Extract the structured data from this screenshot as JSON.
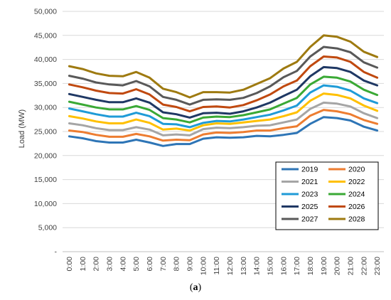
{
  "caption": {
    "open": "(",
    "letter": "a",
    "close": ")"
  },
  "chart_data": {
    "type": "line",
    "title": "",
    "ylabel": "Load (MW)",
    "xlabel": "",
    "ylim": [
      0,
      50000
    ],
    "yticks": [
      0,
      5000,
      10000,
      15000,
      20000,
      25000,
      30000,
      35000,
      40000,
      45000,
      50000
    ],
    "ytick_labels": [
      "-",
      "5,000",
      "10,000",
      "15,000",
      "20,000",
      "25,000",
      "30,000",
      "35,000",
      "40,000",
      "45,000",
      "50,000"
    ],
    "grid": true,
    "legend_position": "bottom-right",
    "categories": [
      "0:00",
      "1:00",
      "2:00",
      "3:00",
      "4:00",
      "5:00",
      "6:00",
      "7:00",
      "8:00",
      "9:00",
      "10:00",
      "11:00",
      "12:00",
      "13:00",
      "14:00",
      "15:00",
      "16:00",
      "17:00",
      "18:00",
      "19:00",
      "20:00",
      "21:00",
      "22:00",
      "23:00"
    ],
    "series": [
      {
        "name": "2019",
        "color": "#2E75B6",
        "values": [
          24000,
          23600,
          23000,
          22700,
          22700,
          23300,
          22700,
          22000,
          22400,
          22400,
          23500,
          23800,
          23700,
          23800,
          24100,
          24000,
          24300,
          24700,
          26600,
          28000,
          27800,
          27300,
          26000,
          25200
        ]
      },
      {
        "name": "2020",
        "color": "#ED7D31",
        "values": [
          25200,
          24900,
          24300,
          23900,
          23900,
          24500,
          24000,
          23100,
          23300,
          23200,
          24400,
          24800,
          24700,
          24900,
          25200,
          25200,
          25700,
          26100,
          28300,
          29500,
          29200,
          28600,
          27400,
          26600
        ]
      },
      {
        "name": "2021",
        "color": "#A5A5A5",
        "values": [
          26700,
          26300,
          25700,
          25300,
          25300,
          25900,
          25400,
          24200,
          24400,
          24200,
          25500,
          25800,
          25700,
          25900,
          26200,
          26300,
          26900,
          27500,
          29700,
          31000,
          30800,
          30200,
          28800,
          27800
        ]
      },
      {
        "name": "2022",
        "color": "#FFC000",
        "values": [
          28200,
          27700,
          27100,
          26700,
          26700,
          27500,
          26800,
          25400,
          25600,
          25200,
          26300,
          26700,
          26600,
          26900,
          27200,
          27500,
          28200,
          29000,
          31400,
          32900,
          32600,
          31900,
          30400,
          29300
        ]
      },
      {
        "name": "2023",
        "color": "#1F9BD7",
        "values": [
          29800,
          29200,
          28600,
          28100,
          28100,
          28900,
          28200,
          26600,
          26500,
          25900,
          26800,
          27200,
          27100,
          27500,
          28000,
          28500,
          29400,
          30400,
          33100,
          34600,
          34300,
          33500,
          31900,
          30900
        ]
      },
      {
        "name": "2024",
        "color": "#3AA935",
        "values": [
          31200,
          30600,
          30000,
          29600,
          29600,
          30300,
          29500,
          27800,
          27500,
          26900,
          27900,
          28100,
          28000,
          28400,
          29000,
          29600,
          30800,
          32000,
          34800,
          36400,
          36200,
          35400,
          33700,
          32600
        ]
      },
      {
        "name": "2025",
        "color": "#1F3864",
        "values": [
          32800,
          32200,
          31600,
          31100,
          31100,
          31900,
          31000,
          29000,
          28600,
          27900,
          28800,
          28900,
          28700,
          29200,
          30000,
          31000,
          32400,
          33700,
          36500,
          38400,
          38200,
          37400,
          35600,
          34600
        ]
      },
      {
        "name": "2026",
        "color": "#C0490F",
        "values": [
          34800,
          34200,
          33500,
          33000,
          32900,
          33800,
          32700,
          30600,
          30100,
          29200,
          30100,
          30200,
          30000,
          30500,
          31500,
          32700,
          34400,
          35600,
          38600,
          40600,
          40400,
          39500,
          37400,
          36200
        ]
      },
      {
        "name": "2027",
        "color": "#595959",
        "values": [
          36600,
          36000,
          35200,
          34800,
          34600,
          35500,
          34400,
          32200,
          31600,
          30600,
          31600,
          31700,
          31600,
          32000,
          33000,
          34400,
          36300,
          37600,
          40600,
          42600,
          42300,
          41500,
          39400,
          38300
        ]
      },
      {
        "name": "2028",
        "color": "#9E7A10",
        "values": [
          38600,
          38000,
          37100,
          36600,
          36500,
          37400,
          36200,
          33900,
          33200,
          32100,
          33200,
          33200,
          33100,
          33700,
          34900,
          36100,
          38100,
          39500,
          42600,
          45000,
          44700,
          43700,
          41600,
          40500
        ]
      }
    ]
  }
}
